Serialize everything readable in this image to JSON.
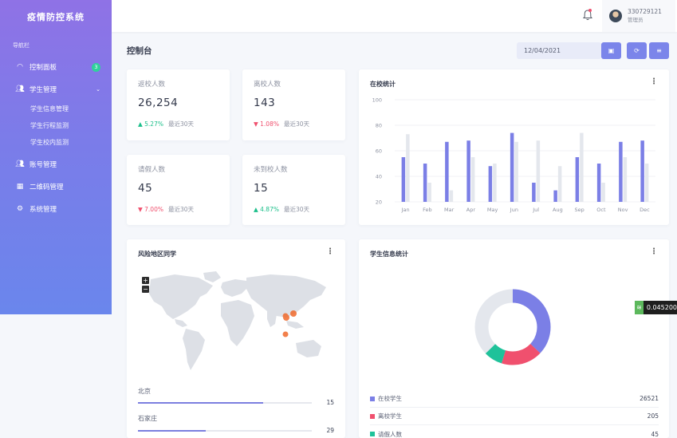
{
  "app": {
    "title": "疫情防控系统"
  },
  "sidebar": {
    "caption": "导航栏",
    "items": [
      {
        "label": "控制面板",
        "icon": "gauge-icon",
        "badge": "3"
      },
      {
        "label": "学生管理",
        "icon": "users-icon",
        "chevron": "chevron-down-icon"
      },
      {
        "label": "账号管理",
        "icon": "users-icon"
      },
      {
        "label": "二维码管理",
        "icon": "qrcode-icon"
      },
      {
        "label": "系统管理",
        "icon": "gear-icon"
      }
    ],
    "subitems": [
      "学生信息管理",
      "学生行程监测",
      "学生校内监测"
    ]
  },
  "header": {
    "bell_icon": "bell-icon",
    "user": {
      "name": "330729121",
      "role": "管理员"
    }
  },
  "toolbar": {
    "page_title": "控制台",
    "date": "12/04/2021",
    "buttons": [
      "calendar-icon",
      "refresh-icon",
      "filter-icon"
    ]
  },
  "stats": [
    {
      "title": "返校人数",
      "value": "26,254",
      "trend": "up",
      "change": "5.27%",
      "period": "最近30天"
    },
    {
      "title": "离校人数",
      "value": "143",
      "trend": "down",
      "change": "1.08%",
      "period": "最近30天"
    },
    {
      "title": "请假人数",
      "value": "45",
      "trend": "down",
      "change": "7.00%",
      "period": "最近30天"
    },
    {
      "title": "未到校人数",
      "value": "15",
      "trend": "up",
      "change": "4.87%",
      "period": "最近30天"
    }
  ],
  "colors": {
    "primary": "#7b7fe6",
    "secondary": "#e4e7ed",
    "up": "#1bbf8a",
    "down": "#f0506e",
    "teal": "#1fc29a"
  },
  "bar_card": {
    "title": "在校统计"
  },
  "map_card": {
    "title": "风险地区同学",
    "zoom_in": "+",
    "zoom_out": "−",
    "regions": [
      {
        "name": "北京",
        "value": "15",
        "fraction": 0.72
      },
      {
        "name": "石家庄",
        "value": "29",
        "fraction": 0.39
      }
    ]
  },
  "donut_card": {
    "title": "学生信息统计",
    "items": [
      {
        "name": "在校学生",
        "value": "26521",
        "color": "#7b7fe6"
      },
      {
        "name": "离校学生",
        "value": "205",
        "color": "#f0506e"
      },
      {
        "name": "请假人数",
        "value": "45",
        "color": "#1fc29a"
      }
    ]
  },
  "chart_data": {
    "type": "bar",
    "categories": [
      "Jan",
      "Feb",
      "Mar",
      "Apr",
      "May",
      "Jun",
      "Jul",
      "Aug",
      "Sep",
      "Oct",
      "Nov",
      "Dec"
    ],
    "series": [
      {
        "values": [
          55,
          50,
          67,
          68,
          48,
          74,
          35,
          29,
          55,
          50,
          67,
          68
        ],
        "color": "#7b7fe6"
      },
      {
        "values": [
          73,
          35,
          29,
          55,
          50,
          67,
          68,
          48,
          74,
          35,
          55,
          50
        ],
        "color": "#e4e7ed"
      }
    ],
    "ylim": [
      20,
      100
    ],
    "yticks": [
      20,
      40,
      60,
      80,
      100
    ],
    "grid": true
  },
  "extension": {
    "value": "0.045200"
  }
}
